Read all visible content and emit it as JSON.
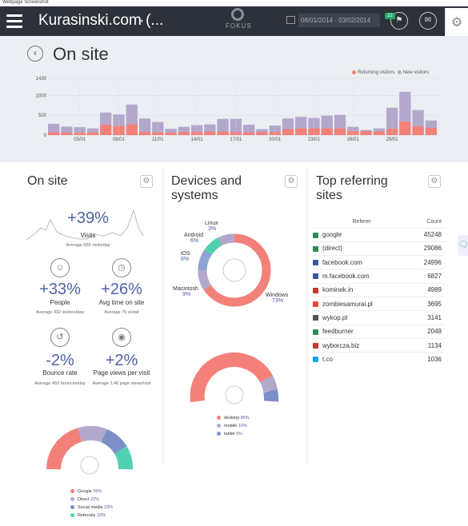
{
  "caption": "Webpage Screenshot",
  "header": {
    "site": "Kurasinski.com (...",
    "logo": "FOKUS",
    "date_range": "08/01/2014 - 03/02/2014",
    "notifications": "22"
  },
  "page_title": "On site",
  "chart_data": {
    "type": "bar",
    "legend": [
      "Returning visitors",
      "New visitors"
    ],
    "colors": {
      "returning": "#f4807a",
      "new": "#b3a8cc"
    },
    "ylim": [
      0,
      1430
    ],
    "yticks": [
      "1430",
      "1000",
      "500",
      "0"
    ],
    "xticks": [
      "05/01",
      "08/01",
      "11/01",
      "14/01",
      "17/01",
      "20/01",
      "23/01",
      "26/01",
      "29/01"
    ],
    "series": [
      {
        "name": "Returning visitors",
        "values": [
          75,
          65,
          60,
          70,
          260,
          230,
          270,
          80,
          70,
          60,
          80,
          80,
          90,
          90,
          80,
          70,
          80,
          80,
          150,
          170,
          170,
          170,
          170,
          100,
          100,
          90,
          160,
          340,
          220,
          180
        ]
      },
      {
        "name": "New visitors",
        "values": [
          285,
          215,
          200,
          170,
          570,
          520,
          770,
          420,
          330,
          160,
          210,
          250,
          270,
          410,
          410,
          260,
          150,
          240,
          420,
          460,
          430,
          490,
          510,
          210,
          130,
          170,
          690,
          1090,
          630,
          370
        ]
      }
    ]
  },
  "onsite": {
    "title": "On site",
    "visits": {
      "pct": "+39%",
      "label": "Visits",
      "sub": "Average 559 visits/day"
    },
    "people": {
      "pct": "+33%",
      "label": "People",
      "sub": "Average 432 visitors/day"
    },
    "time": {
      "pct": "+26%",
      "label": "Avg time on site",
      "sub": "Average 76 s/visit"
    },
    "bounce": {
      "pct": "-2%",
      "label": "Bounce rate",
      "sub": "Average 453 bounces/day"
    },
    "pageviews": {
      "pct": "+2%",
      "label": "Page views per visit",
      "sub": "Average 1.46 page views/visit"
    },
    "traffic_legend": [
      {
        "name": "Google",
        "value": "36%",
        "color": "#f4807a"
      },
      {
        "name": "Direct",
        "value": "22%",
        "color": "#b3a8cc"
      },
      {
        "name": "Social media",
        "value": "23%",
        "color": "#7c8fc7"
      },
      {
        "name": "Referrals",
        "value": "19%",
        "color": "#4fd1b0"
      }
    ]
  },
  "devices": {
    "title_line1": "Devices and",
    "title_line2": "systems",
    "os": [
      {
        "name": "Linux",
        "value": "3%"
      },
      {
        "name": "Android",
        "value": "6%"
      },
      {
        "name": "iOS",
        "value": "8%"
      },
      {
        "name": "Macintosh",
        "value": "9%"
      },
      {
        "name": "Windows",
        "value": "73%"
      }
    ],
    "device_legend": [
      {
        "name": "desktop",
        "value": "85%",
        "color": "#f4807a"
      },
      {
        "name": "mobile",
        "value": "10%",
        "color": "#b3a8cc"
      },
      {
        "name": "tablet",
        "value": "5%",
        "color": "#7c8fc7"
      }
    ]
  },
  "referring": {
    "title_line1": "Top referring",
    "title_line2": "sites",
    "col_referer": "Referer",
    "col_count": "Count",
    "rows": [
      {
        "site": "google",
        "count": "45248",
        "color": "#2e8b57"
      },
      {
        "site": "(direct)",
        "count": "29086",
        "color": "#2e8b57"
      },
      {
        "site": "facebook.com",
        "count": "24996",
        "color": "#3b5998"
      },
      {
        "site": "m.facebook.com",
        "count": "6827",
        "color": "#3b5998"
      },
      {
        "site": "kominek.in",
        "count": "4989",
        "color": "#c0392b"
      },
      {
        "site": "zombiesamurai.pl",
        "count": "3695",
        "color": "#e74c3c"
      },
      {
        "site": "wykop.pl",
        "count": "3141",
        "color": "#555555"
      },
      {
        "site": "feedburner",
        "count": "2049",
        "color": "#2e8b57"
      },
      {
        "site": "wyborcza.biz",
        "count": "1134",
        "color": "#c0392b"
      },
      {
        "site": "t.co",
        "count": "1036",
        "color": "#1da1f2"
      }
    ]
  }
}
